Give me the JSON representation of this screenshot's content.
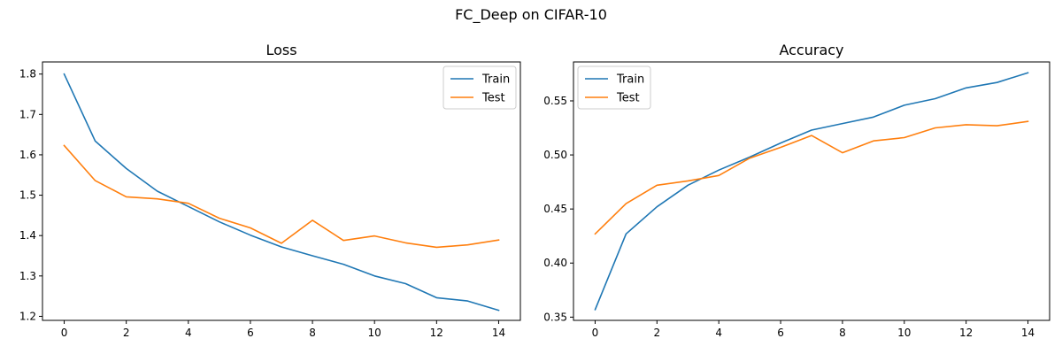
{
  "figure": {
    "suptitle": "FC_Deep on CIFAR-10"
  },
  "colors": {
    "train": "#1f77b4",
    "test": "#ff7f0e",
    "axes": "#000000",
    "background": "#ffffff"
  },
  "chart_data": [
    {
      "type": "line",
      "title": "Loss",
      "xlabel": "",
      "ylabel": "",
      "xlim": [
        -0.7,
        14.7
      ],
      "ylim": [
        1.19,
        1.83
      ],
      "xticks": [
        0,
        2,
        4,
        6,
        8,
        10,
        12,
        14
      ],
      "yticks": [
        1.2,
        1.3,
        1.4,
        1.5,
        1.6,
        1.7,
        1.8
      ],
      "ytick_labels": [
        "1.2",
        "1.3",
        "1.4",
        "1.5",
        "1.6",
        "1.7",
        "1.8"
      ],
      "grid": false,
      "legend_position": "top-right",
      "x": [
        0,
        1,
        2,
        3,
        4,
        5,
        6,
        7,
        8,
        9,
        10,
        11,
        12,
        13,
        14
      ],
      "series": [
        {
          "name": "Train",
          "color": "#1f77b4",
          "values": [
            1.8,
            1.634,
            1.566,
            1.51,
            1.472,
            1.434,
            1.401,
            1.372,
            1.35,
            1.329,
            1.3,
            1.281,
            1.246,
            1.238,
            1.215
          ]
        },
        {
          "name": "Test",
          "color": "#ff7f0e",
          "values": [
            1.623,
            1.536,
            1.496,
            1.491,
            1.48,
            1.443,
            1.419,
            1.381,
            1.438,
            1.388,
            1.399,
            1.382,
            1.371,
            1.377,
            1.389
          ]
        }
      ]
    },
    {
      "type": "line",
      "title": "Accuracy",
      "xlabel": "",
      "ylabel": "",
      "xlim": [
        -0.7,
        14.7
      ],
      "ylim": [
        0.347,
        0.586
      ],
      "xticks": [
        0,
        2,
        4,
        6,
        8,
        10,
        12,
        14
      ],
      "yticks": [
        0.35,
        0.4,
        0.45,
        0.5,
        0.55
      ],
      "ytick_labels": [
        "0.35",
        "0.40",
        "0.45",
        "0.50",
        "0.55"
      ],
      "grid": false,
      "legend_position": "top-left",
      "x": [
        0,
        1,
        2,
        3,
        4,
        5,
        6,
        7,
        8,
        9,
        10,
        11,
        12,
        13,
        14
      ],
      "series": [
        {
          "name": "Train",
          "color": "#1f77b4",
          "values": [
            0.357,
            0.427,
            0.452,
            0.472,
            0.486,
            0.498,
            0.511,
            0.523,
            0.529,
            0.535,
            0.546,
            0.552,
            0.562,
            0.567,
            0.576
          ]
        },
        {
          "name": "Test",
          "color": "#ff7f0e",
          "values": [
            0.427,
            0.455,
            0.472,
            0.476,
            0.481,
            0.497,
            0.507,
            0.518,
            0.502,
            0.513,
            0.516,
            0.525,
            0.528,
            0.527,
            0.531
          ]
        }
      ]
    }
  ]
}
